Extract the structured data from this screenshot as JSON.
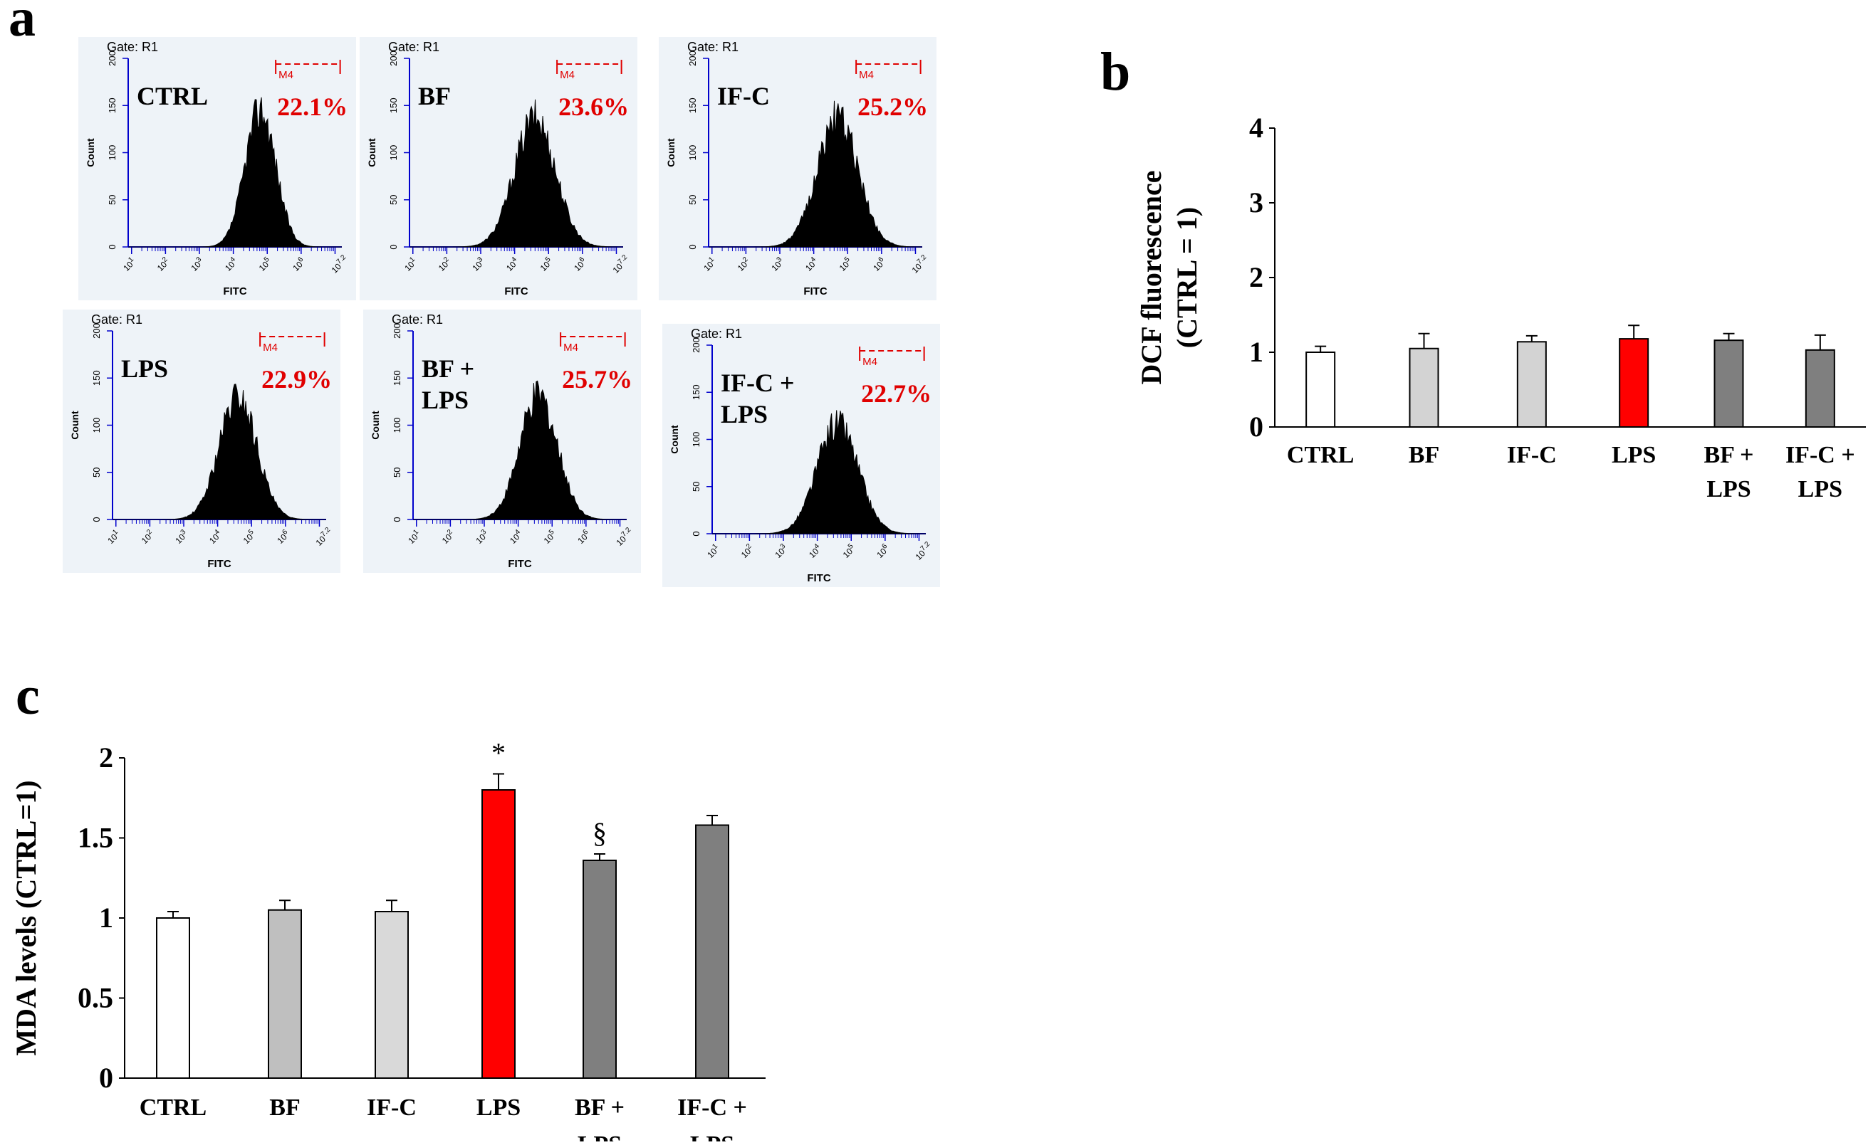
{
  "panel_labels": {
    "a": "a",
    "b": "b",
    "c": "c"
  },
  "histogram_common": {
    "gate": "Gate: R1",
    "marker": "M4",
    "ylabel": "Count",
    "xlabel": "FITC",
    "yticks": [
      "0",
      "50",
      "100",
      "150",
      "200"
    ],
    "xticks": [
      "10^1",
      "10^2",
      "10^3",
      "10^4",
      "10^5",
      "10^6",
      "10^7.2"
    ],
    "axis_color": "#0000cc",
    "marker_color": "#e00000",
    "percent_color": "#e00000"
  },
  "histograms": [
    {
      "group": "CTRL",
      "group_lines": [
        "CTRL"
      ],
      "percent": "22.1%",
      "peak_log": 4.8,
      "width_log": 0.45,
      "peak_count": 150
    },
    {
      "group": "BF",
      "group_lines": [
        "BF"
      ],
      "percent": "23.6%",
      "peak_log": 4.6,
      "width_log": 0.6,
      "peak_count": 140
    },
    {
      "group": "IF-C",
      "group_lines": [
        "IF-C"
      ],
      "percent": "25.2%",
      "peak_log": 4.7,
      "width_log": 0.6,
      "peak_count": 140
    },
    {
      "group": "LPS",
      "group_lines": [
        "LPS"
      ],
      "percent": "22.9%",
      "peak_log": 4.6,
      "width_log": 0.55,
      "peak_count": 135
    },
    {
      "group": "BF + LPS",
      "group_lines": [
        "BF +",
        "LPS"
      ],
      "percent": "25.7%",
      "peak_log": 4.6,
      "width_log": 0.55,
      "peak_count": 135
    },
    {
      "group": "IF-C + LPS",
      "group_lines": [
        "IF-C +",
        "LPS"
      ],
      "percent": "22.7%",
      "peak_log": 4.6,
      "width_log": 0.6,
      "peak_count": 120
    }
  ],
  "chart_data": [
    {
      "type": "bar",
      "panel": "b",
      "title": "",
      "ylabel": "DCF fluorescence (CTRL = 1)",
      "ylabel_lines": [
        "DCF fluorescence",
        "(CTRL = 1)"
      ],
      "ylim": [
        0,
        4
      ],
      "yticks": [
        0,
        1,
        2,
        3,
        4
      ],
      "categories": [
        "CTRL",
        "BF",
        "IF-C",
        "LPS",
        "BF + LPS",
        "IF-C + LPS"
      ],
      "category_lines": [
        [
          "CTRL"
        ],
        [
          "BF"
        ],
        [
          "IF-C"
        ],
        [
          "LPS"
        ],
        [
          "BF +",
          "LPS"
        ],
        [
          "IF-C +",
          "LPS"
        ]
      ],
      "values": [
        1.0,
        1.05,
        1.14,
        1.18,
        1.16,
        1.03
      ],
      "errors": [
        0.08,
        0.2,
        0.08,
        0.18,
        0.09,
        0.2
      ],
      "colors": [
        "#ffffff",
        "#d3d3d3",
        "#d3d3d3",
        "#ff0000",
        "#7f7f7f",
        "#7f7f7f"
      ],
      "annotations": [
        "",
        "",
        "",
        "",
        "",
        ""
      ]
    },
    {
      "type": "bar",
      "panel": "c",
      "title": "",
      "ylabel": "MDA levels (CTRL=1)",
      "ylabel_lines": [
        "MDA levels (CTRL=1)"
      ],
      "ylim": [
        0,
        2
      ],
      "yticks": [
        "0",
        "0.5",
        "1",
        "1.5",
        "2"
      ],
      "ytick_values": [
        0,
        0.5,
        1,
        1.5,
        2
      ],
      "categories": [
        "CTRL",
        "BF",
        "IF-C",
        "LPS",
        "BF + LPS",
        "IF-C + LPS"
      ],
      "category_lines": [
        [
          "CTRL"
        ],
        [
          "BF"
        ],
        [
          "IF-C"
        ],
        [
          "LPS"
        ],
        [
          "BF +",
          "LPS"
        ],
        [
          "IF-C +",
          "LPS"
        ]
      ],
      "values": [
        1.0,
        1.05,
        1.04,
        1.8,
        1.36,
        1.58
      ],
      "errors": [
        0.04,
        0.06,
        0.07,
        0.1,
        0.04,
        0.06
      ],
      "colors": [
        "#ffffff",
        "#bfbfbf",
        "#d9d9d9",
        "#ff0000",
        "#7f7f7f",
        "#7f7f7f"
      ],
      "annotations": [
        "",
        "",
        "",
        "*",
        "§",
        ""
      ]
    }
  ]
}
